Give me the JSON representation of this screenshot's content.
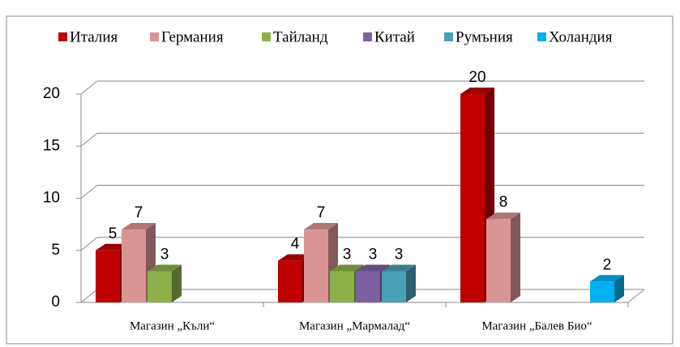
{
  "chart_data": {
    "type": "bar3d",
    "categories": [
      "Магазин „Къли“",
      "Магазин „Мармалад“",
      "Магазин „Балев Био“"
    ],
    "series": [
      {
        "name": "Италия",
        "color": "#c00000",
        "values": [
          5,
          4,
          20
        ]
      },
      {
        "name": "Германия",
        "color": "#d99594",
        "values": [
          7,
          7,
          8
        ]
      },
      {
        "name": "Тайланд",
        "color": "#8db04a",
        "values": [
          3,
          3,
          null
        ]
      },
      {
        "name": "Китай",
        "color": "#7d60a0",
        "values": [
          null,
          3,
          null
        ]
      },
      {
        "name": "Румъния",
        "color": "#4aa0b5",
        "values": [
          null,
          3,
          null
        ]
      },
      {
        "name": "Холандия",
        "color": "#00b0f0",
        "values": [
          null,
          null,
          2
        ]
      }
    ],
    "ylim": [
      0,
      20
    ],
    "yticks": [
      0,
      5,
      10,
      15,
      20
    ],
    "grid": true,
    "legend": "top"
  }
}
